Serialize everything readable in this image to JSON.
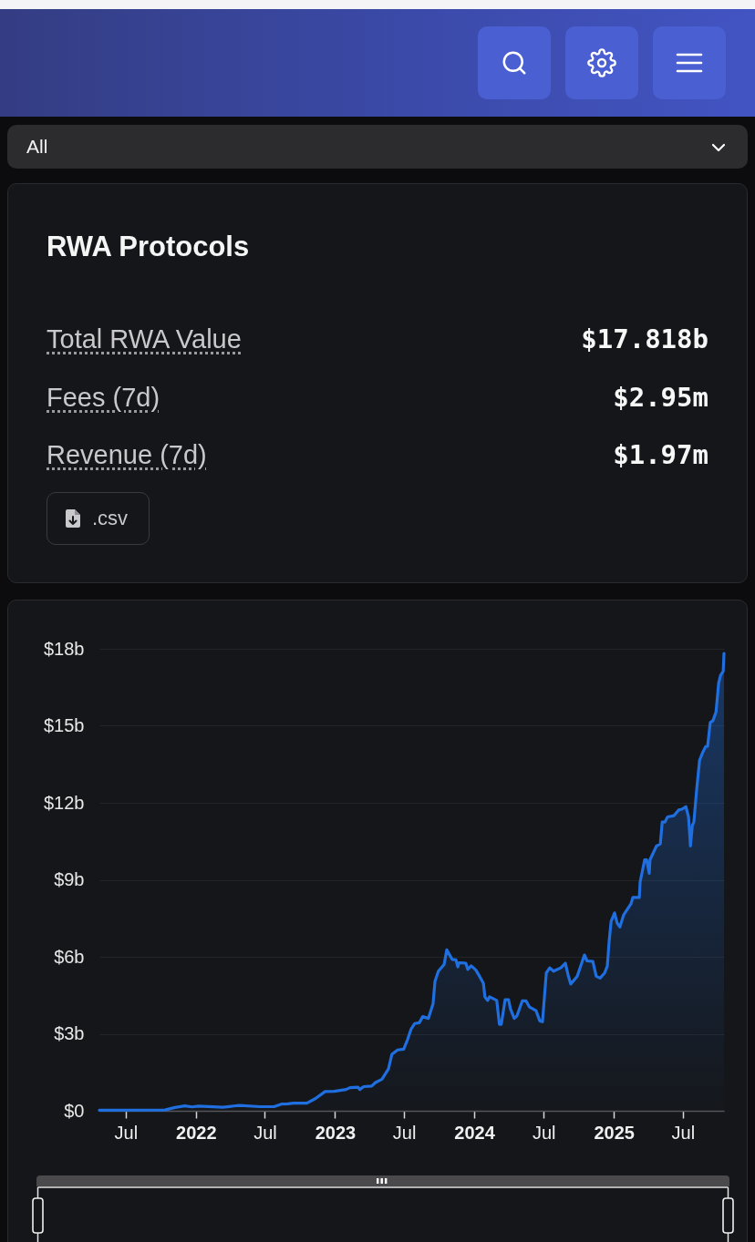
{
  "chart_data": [
    {
      "type": "other",
      "title": "RWA Protocols",
      "annotations": [
        "All",
        "Total RWA Value",
        "$17.818b",
        "Fees (7d)",
        "$2.95m",
        "Revenue (7d)",
        "$1.97m",
        ".csv"
      ]
    },
    {
      "type": "area",
      "color": "#1f6fe0",
      "x": [
        "2021-04-23",
        "2021-10-12",
        "2021-11-07",
        "2021-12-03",
        "2021-12-22",
        "2022-01-08",
        "2022-03-13",
        "2022-04-25",
        "2022-06-19",
        "2022-07-25",
        "2022-08-13",
        "2022-08-30",
        "2022-09-14",
        "2022-10-19",
        "2022-11-10",
        "2022-12-06",
        "2022-12-30",
        "2023-01-30",
        "2023-02-09",
        "2023-03-02",
        "2023-03-07",
        "2023-03-17",
        "2023-04-07",
        "2023-04-17",
        "2023-05-04",
        "2023-05-21",
        "2023-05-30",
        "2023-06-14",
        "2023-06-30",
        "2023-07-10",
        "2023-07-19",
        "2023-07-29",
        "2023-08-10",
        "2023-08-19",
        "2023-09-03",
        "2023-09-15",
        "2023-09-20",
        "2023-09-29",
        "2023-10-14",
        "2023-10-21",
        "2023-11-04",
        "2023-11-14",
        "2023-11-19",
        "2023-11-22",
        "2023-12-10",
        "2023-12-15",
        "2023-12-24",
        "2024-01-05",
        "2024-01-15",
        "2024-01-25",
        "2024-01-29",
        "2024-02-05",
        "2024-02-10",
        "2024-02-29",
        "2024-03-07",
        "2024-03-12",
        "2024-03-22",
        "2024-03-31",
        "2024-04-05",
        "2024-04-15",
        "2024-04-22",
        "2024-05-06",
        "2024-05-16",
        "2024-05-25",
        "2024-06-11",
        "2024-06-21",
        "2024-06-28",
        "2024-07-08",
        "2024-07-17",
        "2024-07-27",
        "2024-08-15",
        "2024-08-27",
        "2024-09-03",
        "2024-09-10",
        "2024-09-27",
        "2024-10-16",
        "2024-10-23",
        "2024-11-07",
        "2024-11-16",
        "2024-11-26",
        "2024-12-08",
        "2024-12-15",
        "2024-12-20",
        "2024-12-25",
        "2025-01-03",
        "2025-01-10",
        "2025-01-17",
        "2025-01-27",
        "2025-02-15",
        "2025-02-20",
        "2025-03-09",
        "2025-03-11",
        "2025-03-23",
        "2025-03-28",
        "2025-04-04",
        "2025-04-06",
        "2025-04-23",
        "2025-05-03",
        "2025-05-08",
        "2025-05-15",
        "2025-05-22",
        "2025-06-08",
        "2025-06-20",
        "2025-06-29",
        "2025-07-09",
        "2025-07-16",
        "2025-07-21",
        "2025-07-26",
        "2025-07-30",
        "2025-08-06",
        "2025-08-14",
        "2025-08-23",
        "2025-08-30",
        "2025-09-04",
        "2025-09-11",
        "2025-09-18",
        "2025-09-26",
        "2025-10-03",
        "2025-10-08",
        "2025-10-15",
        "2025-10-17"
      ],
      "values": [
        0.02,
        0.03,
        0.13,
        0.19,
        0.15,
        0.18,
        0.14,
        0.21,
        0.16,
        0.16,
        0.26,
        0.27,
        0.3,
        0.3,
        0.47,
        0.75,
        0.76,
        0.83,
        0.9,
        0.92,
        0.83,
        0.94,
        0.96,
        1.1,
        1.23,
        1.63,
        2.2,
        2.37,
        2.4,
        2.77,
        3.17,
        3.4,
        3.43,
        3.67,
        3.6,
        4.17,
        5.04,
        5.44,
        5.7,
        6.27,
        5.9,
        5.88,
        5.61,
        5.77,
        5.75,
        5.51,
        5.65,
        5.49,
        5.24,
        4.97,
        4.44,
        4.3,
        4.44,
        4.3,
        3.37,
        3.37,
        4.33,
        4.33,
        3.97,
        3.6,
        3.7,
        4.28,
        4.28,
        4.04,
        3.9,
        3.5,
        3.47,
        5.37,
        5.57,
        5.44,
        5.57,
        5.75,
        5.3,
        4.94,
        5.24,
        6.07,
        5.84,
        5.82,
        5.24,
        5.17,
        5.37,
        5.64,
        6.64,
        7.38,
        7.71,
        7.31,
        7.16,
        7.64,
        8.06,
        8.31,
        8.31,
        8.91,
        9.78,
        9.78,
        9.25,
        9.78,
        10.32,
        10.4,
        11.25,
        11.25,
        11.45,
        11.5,
        11.72,
        11.75,
        11.85,
        11.45,
        10.32,
        11.12,
        11.25,
        12.46,
        13.66,
        13.99,
        14.19,
        14.2,
        15.13,
        15.2,
        15.53,
        16.66,
        16.97,
        17.13,
        17.82
      ],
      "xlim": [
        "2021-04-23",
        "2025-10-17"
      ],
      "xticks": [
        {
          "value": "2021-07",
          "label": "Jul"
        },
        "2022",
        {
          "value": "2022-07",
          "label": "Jul"
        },
        "2023",
        {
          "value": "2023-07",
          "label": "Jul"
        },
        "2024",
        {
          "value": "2024-07",
          "label": "Jul"
        },
        "2025",
        {
          "value": "2025-07",
          "label": "Jul"
        }
      ],
      "ylim": [
        0,
        18
      ],
      "yticks": [
        {
          "value": 0,
          "label": "$0"
        },
        {
          "value": 3,
          "label": "$3b"
        },
        {
          "value": 6,
          "label": "$6b"
        },
        {
          "value": 9,
          "label": "$9b"
        },
        {
          "value": 12,
          "label": "$12b"
        },
        {
          "value": 15,
          "label": "$15b"
        },
        {
          "value": 18,
          "label": "$18b"
        }
      ],
      "grid": "y"
    }
  ]
}
